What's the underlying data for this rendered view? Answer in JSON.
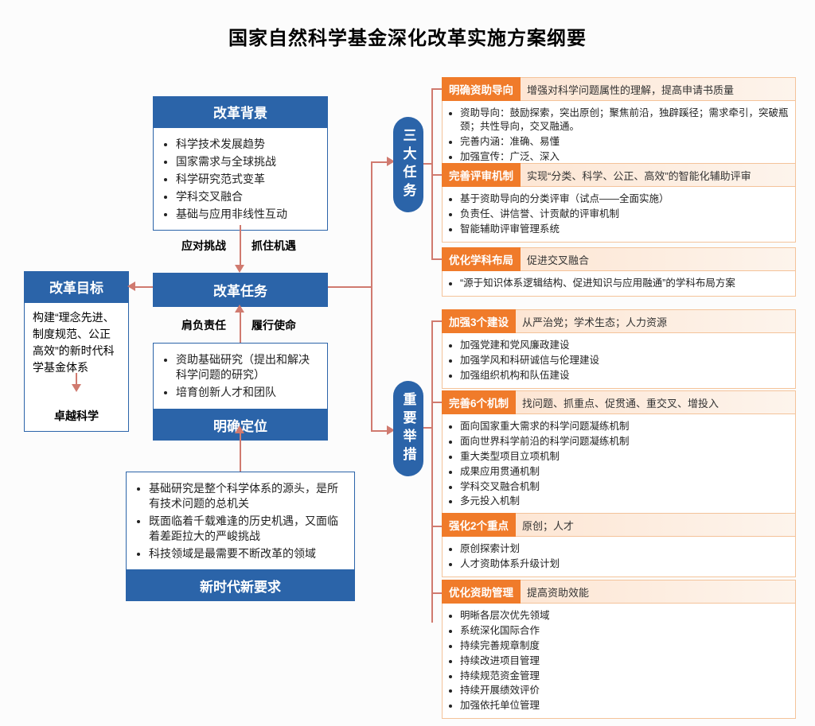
{
  "type": "flowchart",
  "title": "国家自然科学基金深化改革实施方案纲要",
  "colors": {
    "blue": "#2b64a9",
    "orange": "#f07b2a",
    "orange_light_border": "#f4c39a",
    "orange_light_fill": "#fde6d4",
    "connector": "#d07a6f",
    "bg": "#fcfcfc",
    "text": "#222222"
  },
  "left": {
    "background": {
      "title": "改革背景",
      "items": [
        "科学技术发展趋势",
        "国家需求与全球挑战",
        "科学研究范式变革",
        "学科交叉融合",
        "基础与应用非线性互动"
      ]
    },
    "labels_bg_to_task": {
      "left": "应对挑战",
      "right": "抓住机遇"
    },
    "task": {
      "title": "改革任务"
    },
    "labels_task_to_pos": {
      "left": "肩负责任",
      "right": "履行使命"
    },
    "position": {
      "items": [
        "资助基础研究（提出和解决科学问题的研究）",
        "培育创新人才和团队"
      ],
      "title": "明确定位"
    },
    "new_era": {
      "items": [
        "基础研究是整个科学体系的源头，是所有技术问题的总机关",
        "既面临着千载难逢的历史机遇，又面临着差距拉大的严峻挑战",
        "科技领域是最需要不断改革的领域"
      ],
      "title": "新时代新要求"
    },
    "goal": {
      "title": "改革目标",
      "body": "构建“理念先进、制度规范、公正高效”的新时代科学基金体系",
      "excel": "卓越科学"
    }
  },
  "pill_tasks": "三大任务",
  "pill_measures": "重要举措",
  "tasks": [
    {
      "tag": "明确资助导向",
      "sub": "增强对科学问题属性的理解，提高申请书质量",
      "items": [
        "资助导向：鼓励探索，突出原创；聚焦前沿，独辟蹊径；需求牵引，突破瓶颈；共性导向，交叉融通。",
        "完善内涵：准确、易懂",
        "加强宣传：广泛、深入"
      ]
    },
    {
      "tag": "完善评审机制",
      "sub": "实现“分类、科学、公正、高效”的智能化辅助评审",
      "items": [
        "基于资助导向的分类评审（试点——全面实施）",
        "负责任、讲信誉、计贡献的评审机制",
        "智能辅助评审管理系统"
      ]
    },
    {
      "tag": "优化学科布局",
      "sub": "促进交叉融合",
      "items": [
        "“源于知识体系逻辑结构、促进知识与应用融通”的学科布局方案"
      ]
    }
  ],
  "measures": [
    {
      "tag": "加强3个建设",
      "sub": "从严治党；学术生态；人力资源",
      "items": [
        "加强党建和党风廉政建设",
        "加强学风和科研诚信与伦理建设",
        "加强组织机构和队伍建设"
      ]
    },
    {
      "tag": "完善6个机制",
      "sub": "找问题、抓重点、促贯通、重交叉、增投入",
      "items": [
        "面向国家重大需求的科学问题凝练机制",
        "面向世界科学前沿的科学问题凝练机制",
        "重大类型项目立项机制",
        "成果应用贯通机制",
        "学科交叉融合机制",
        "多元投入机制"
      ]
    },
    {
      "tag": "强化2个重点",
      "sub": "原创；人才",
      "items": [
        "原创探索计划",
        "人才资助体系升级计划"
      ]
    },
    {
      "tag": "优化资助管理",
      "sub": "提高资助效能",
      "items": [
        "明晰各层次优先领域",
        "系统深化国际合作",
        "持续完善规章制度",
        "持续改进项目管理",
        "持续规范资金管理",
        "持续开展绩效评价",
        "加强依托单位管理"
      ]
    }
  ]
}
